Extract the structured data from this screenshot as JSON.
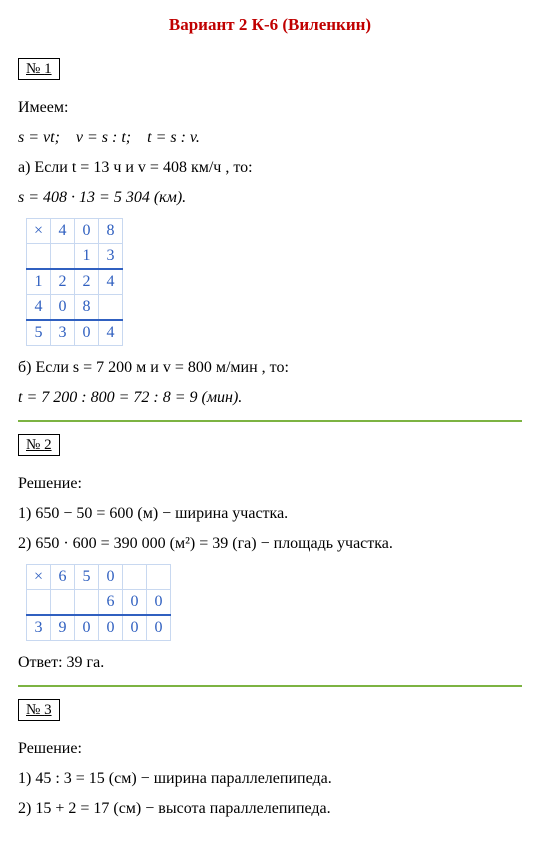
{
  "title": "Вариант 2 К-6 (Виленкин)",
  "p1": {
    "num": "1",
    "intro": "Имеем:",
    "formulas": "s = vt; v = s : t; t = s : v.",
    "partA": "а) Если t = 13 ч и v = 408 км/ч , то:",
    "calcA": "s = 408 · 13 = 5 304 (км).",
    "tableA": {
      "rows": [
        [
          "×",
          "4",
          "0",
          "8"
        ],
        [
          "",
          "",
          "1",
          "3"
        ],
        [
          "1",
          "2",
          "2",
          "4"
        ],
        [
          "4",
          "0",
          "8",
          ""
        ],
        [
          "5",
          "3",
          "0",
          "4"
        ]
      ],
      "ruleBelow": [
        1,
        3
      ]
    },
    "partB": "б) Если s = 7 200 м и v = 800 м/мин , то:",
    "calcB": "t = 7 200 : 800 = 72 : 8 = 9 (мин)."
  },
  "p2": {
    "num": "2",
    "label": "Решение:",
    "step1": "1) 650 − 50 = 600 (м) − ширина участка.",
    "step2": "2) 650 · 600 = 390 000 (м²) = 39 (га) − площадь участка.",
    "tableB": {
      "rows": [
        [
          "×",
          "6",
          "5",
          "0",
          "",
          ""
        ],
        [
          "",
          "",
          "",
          "6",
          "0",
          "0"
        ],
        [
          "3",
          "9",
          "0",
          "0",
          "0",
          "0"
        ]
      ],
      "ruleBelow": [
        1
      ]
    },
    "answer": "Ответ: 39 га."
  },
  "p3": {
    "num": "3",
    "label": "Решение:",
    "step1": "1) 45 : 3 = 15 (см) − ширина параллелепипеда.",
    "step2": "2) 15 + 2 = 17 (см) − высота параллелепипеда."
  },
  "colors": {
    "cell_border": "#c8d8f0",
    "cell_text": "#3060c0",
    "rule": "#3060c0",
    "title": "#c00000",
    "green": "#7cb342"
  }
}
